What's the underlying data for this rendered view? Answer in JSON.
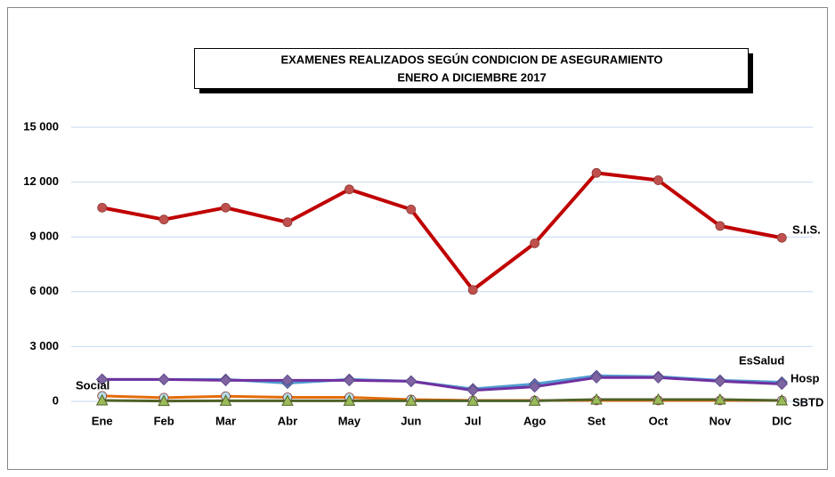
{
  "chart_data": {
    "type": "line",
    "title": [
      "EXAMENES  REALIZADOS SEGÚN CONDICION DE ASEGURAMIENTO",
      "ENERO  A DICIEMBRE  2017"
    ],
    "categories": [
      "Ene",
      "Feb",
      "Mar",
      "Abr",
      "May",
      "Jun",
      "Jul",
      "Ago",
      "Set",
      "Oct",
      "Nov",
      "DIC"
    ],
    "ylim": [
      0,
      15000
    ],
    "yticks": [
      {
        "value": 0,
        "label": "0"
      },
      {
        "value": 3000,
        "label": "3 000"
      },
      {
        "value": 6000,
        "label": "6 000"
      },
      {
        "value": 9000,
        "label": "9 000"
      },
      {
        "value": 12000,
        "label": "12 000"
      },
      {
        "value": 15000,
        "label": "15 000"
      }
    ],
    "grid": true,
    "series": [
      {
        "name": "S.I.S.",
        "color": "#c00000",
        "marker_color": "#c0504d",
        "marker": "circle",
        "values": [
          10600,
          9950,
          10600,
          9800,
          11600,
          10500,
          6100,
          8650,
          12500,
          12100,
          9600,
          8950
        ]
      },
      {
        "name": "EsSalud",
        "color": "#4f9bd0",
        "marker_color": "#4f81bd",
        "marker": "diamond",
        "values": [
          1200,
          1200,
          1200,
          1000,
          1200,
          1100,
          680,
          950,
          1400,
          1350,
          1150,
          1050
        ]
      },
      {
        "name": "Hosp",
        "color": "#7030a0",
        "marker_color": "#8064a2",
        "marker": "diamond",
        "values": [
          1200,
          1200,
          1150,
          1150,
          1150,
          1100,
          600,
          800,
          1300,
          1300,
          1100,
          950
        ]
      },
      {
        "name": "Social",
        "color": "#e46c0a",
        "marker_color": "#b7dee8",
        "marker": "circle",
        "values": [
          300,
          200,
          280,
          220,
          220,
          100,
          50,
          50,
          50,
          50,
          50,
          50
        ]
      },
      {
        "name": "SBTD",
        "color": "#4f6228",
        "marker_color": "#9bbb59",
        "marker": "triangle",
        "values": [
          50,
          20,
          30,
          30,
          30,
          30,
          30,
          30,
          100,
          100,
          100,
          50
        ]
      }
    ]
  }
}
